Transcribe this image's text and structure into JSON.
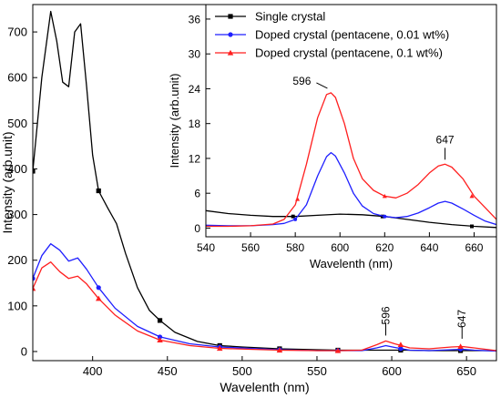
{
  "chart_data": [
    {
      "type": "line",
      "panel": "main",
      "xlabel": "Wavelenth (nm)",
      "ylabel": "Intensity (arb.unit)",
      "xlim": [
        360,
        670
      ],
      "ylim": [
        -20,
        760
      ],
      "xticks": [
        400,
        450,
        500,
        550,
        600,
        650
      ],
      "yticks": [
        0,
        100,
        200,
        300,
        400,
        500,
        600,
        700
      ],
      "series": [
        {
          "name": "Single crystal",
          "color": "#000000",
          "marker": "square",
          "x": [
            360,
            366,
            372,
            376,
            380,
            384,
            388,
            392,
            396,
            400,
            404,
            410,
            416,
            422,
            430,
            438,
            445,
            455,
            470,
            485,
            500,
            525,
            550,
            565,
            580,
            596,
            610,
            625,
            647,
            660,
            670
          ],
          "y": [
            395,
            600,
            745,
            680,
            590,
            580,
            700,
            718,
            580,
            430,
            352,
            315,
            280,
            215,
            140,
            90,
            68,
            42,
            22,
            13,
            10,
            6,
            4,
            3,
            3,
            3,
            3,
            2,
            2,
            2,
            2
          ],
          "markers_x": [
            360,
            404,
            445,
            485,
            525,
            564,
            606,
            646
          ],
          "markers_y": [
            395,
            352,
            68,
            13,
            6,
            3,
            3,
            2
          ]
        },
        {
          "name": "Doped crystal (pentacene, 0.01 wt%)",
          "color": "#1f1fff",
          "marker": "circle",
          "x": [
            360,
            366,
            372,
            378,
            384,
            390,
            396,
            404,
            415,
            430,
            445,
            465,
            485,
            505,
            525,
            550,
            565,
            580,
            590,
            596,
            602,
            612,
            625,
            640,
            647,
            655,
            670
          ],
          "y": [
            160,
            210,
            236,
            222,
            198,
            205,
            180,
            140,
            95,
            55,
            32,
            17,
            10,
            7,
            4,
            2,
            2,
            2,
            8,
            13,
            9,
            3,
            2,
            4,
            5,
            3,
            1
          ],
          "markers_x": [
            360,
            404,
            445,
            485,
            525,
            564,
            606,
            646
          ],
          "markers_y": [
            160,
            140,
            32,
            10,
            4,
            2,
            6,
            5
          ]
        },
        {
          "name": "Doped crystal (pentacene, 0.1 wt%)",
          "color": "#ff1f1f",
          "marker": "triangle",
          "x": [
            360,
            366,
            372,
            378,
            384,
            390,
            396,
            404,
            415,
            430,
            445,
            465,
            485,
            505,
            525,
            550,
            565,
            580,
            590,
            596,
            602,
            612,
            625,
            640,
            647,
            655,
            670
          ],
          "y": [
            138,
            183,
            196,
            175,
            160,
            165,
            148,
            116,
            80,
            45,
            25,
            13,
            7,
            5,
            3,
            2,
            2,
            3,
            15,
            23,
            17,
            8,
            6,
            10,
            11,
            8,
            2
          ],
          "markers_x": [
            360,
            404,
            445,
            485,
            525,
            564,
            606,
            646
          ],
          "markers_y": [
            138,
            116,
            25,
            7,
            3,
            2,
            15,
            11
          ]
        }
      ],
      "annotations": [
        {
          "text": "596",
          "x": 596,
          "y": 35
        },
        {
          "text": "647",
          "x": 647,
          "y": 28
        }
      ]
    },
    {
      "type": "line",
      "panel": "inset",
      "xlabel": "Wavelenth (nm)",
      "ylabel": "Intensity (arb.unit)",
      "xlim": [
        540,
        670
      ],
      "ylim": [
        -1.5,
        38.5
      ],
      "xticks": [
        540,
        560,
        580,
        600,
        620,
        640,
        660
      ],
      "yticks": [
        0,
        6,
        12,
        18,
        24,
        30,
        36
      ],
      "legend_position": "top-left",
      "series": [
        {
          "name": "Single crystal",
          "color": "#000000",
          "marker": "square",
          "x": [
            540,
            550,
            560,
            570,
            580,
            590,
            600,
            610,
            620,
            630,
            640,
            650,
            660,
            670
          ],
          "y": [
            3.0,
            2.5,
            2.2,
            2.0,
            2.0,
            2.2,
            2.4,
            2.3,
            2.0,
            1.5,
            1.0,
            0.6,
            0.3,
            0.1
          ],
          "markers_x": [
            579,
            619,
            659
          ],
          "markers_y": [
            2.0,
            2.0,
            0.3
          ]
        },
        {
          "name": "Doped crystal (pentacene, 0.01 wt%)",
          "color": "#1f1fff",
          "marker": "circle",
          "x": [
            540,
            550,
            560,
            570,
            575,
            580,
            585,
            590,
            594,
            596,
            598,
            602,
            606,
            610,
            615,
            620,
            625,
            630,
            635,
            640,
            644,
            647,
            650,
            655,
            660,
            665,
            670
          ],
          "y": [
            0.5,
            0.4,
            0.4,
            0.6,
            0.8,
            1.5,
            4.0,
            9.0,
            12.3,
            13.0,
            12.4,
            9.5,
            6.0,
            3.8,
            2.5,
            2.0,
            1.8,
            2.0,
            2.6,
            3.5,
            4.3,
            4.6,
            4.3,
            3.3,
            2.2,
            1.2,
            0.6
          ],
          "markers_x": [
            580,
            620
          ],
          "markers_y": [
            1.5,
            2.0
          ]
        },
        {
          "name": "Doped crystal (pentacene, 0.1 wt%)",
          "color": "#ff1f1f",
          "marker": "triangle",
          "x": [
            540,
            550,
            560,
            570,
            575,
            580,
            585,
            590,
            594,
            596,
            598,
            602,
            606,
            610,
            615,
            620,
            625,
            630,
            635,
            640,
            644,
            647,
            650,
            655,
            660,
            665,
            670
          ],
          "y": [
            0.3,
            0.3,
            0.4,
            0.7,
            1.5,
            4.0,
            11.0,
            19.0,
            23.0,
            23.3,
            22.5,
            18.0,
            12.0,
            8.5,
            6.5,
            5.5,
            5.2,
            6.0,
            7.5,
            9.5,
            10.7,
            11.0,
            10.5,
            8.5,
            5.5,
            3.5,
            1.5
          ],
          "markers_x": [
            581,
            620,
            659
          ],
          "markers_y": [
            5.0,
            5.5,
            5.5
          ]
        }
      ],
      "annotations": [
        {
          "text": "596",
          "x": 596,
          "y": 23.3
        },
        {
          "text": "647",
          "x": 647,
          "y": 11.0
        }
      ]
    }
  ]
}
